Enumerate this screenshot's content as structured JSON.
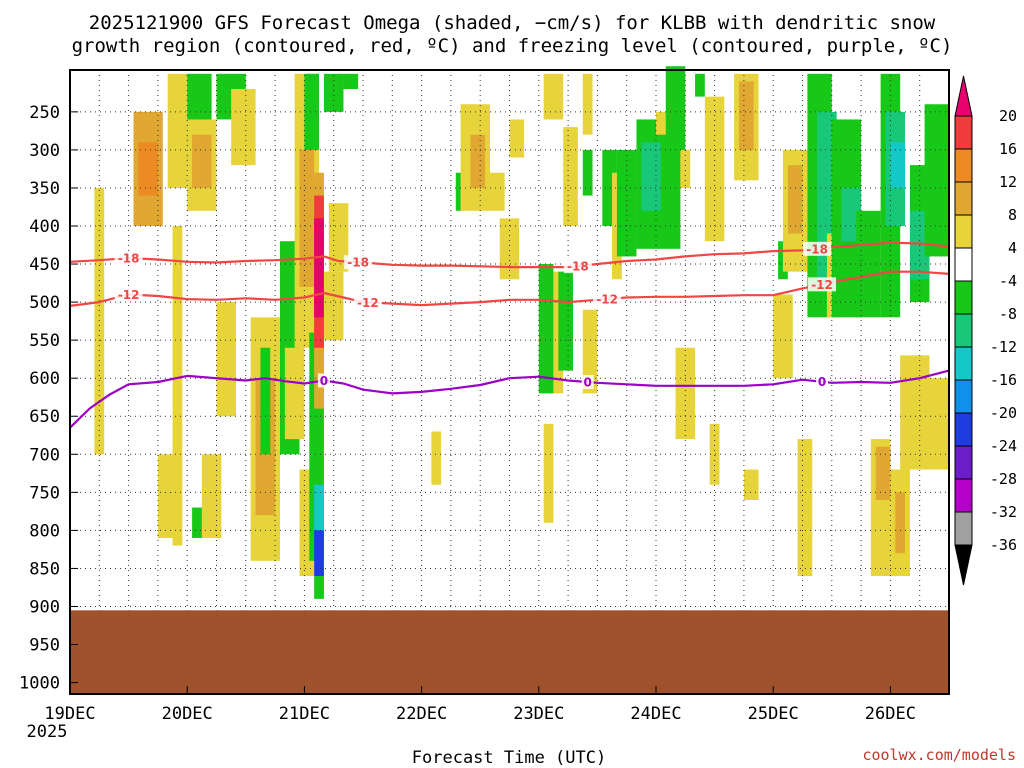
{
  "chart_data": {
    "type": "heatmap",
    "title_lines": [
      "2025121900 GFS Forecast Omega (shaded, −cm/s) for KLBB with dendritic snow",
      "growth region (contoured, red, ºC) and freezing level (contoured, purple, ºC)"
    ],
    "xlabel": "Forecast Time (UTC)",
    "x_ticks": [
      "19DEC",
      "20DEC",
      "21DEC",
      "22DEC",
      "23DEC",
      "24DEC",
      "25DEC",
      "26DEC"
    ],
    "x_sub_label": "2025",
    "x_range_hours": [
      0,
      180
    ],
    "y_ticks": [
      250,
      300,
      350,
      400,
      450,
      500,
      550,
      600,
      650,
      700,
      750,
      800,
      850,
      900,
      950,
      1000
    ],
    "y_range_hpa": [
      195,
      1015
    ],
    "surface_pressure_hpa": 905,
    "colorbar": {
      "labels": [
        20,
        16,
        12,
        8,
        4,
        -4,
        -8,
        -12,
        -16,
        -20,
        -24,
        -28,
        -32,
        -36
      ],
      "colors": [
        "#e8006e",
        "#f03c3c",
        "#ec8a24",
        "#e0a830",
        "#e6d43a",
        "#ffffff",
        "#18c818",
        "#18c878",
        "#14c8c8",
        "#1090e8",
        "#1e3ce0",
        "#6a1ec8",
        "#b400c8",
        "#a0a0a0",
        "#000000"
      ]
    },
    "shading_regions": [
      {
        "t0": 5,
        "t1": 7,
        "p0": 350,
        "p1": 700,
        "value": 4
      },
      {
        "t0": 13,
        "t1": 19,
        "p0": 250,
        "p1": 400,
        "value": 8
      },
      {
        "t0": 14,
        "t1": 18,
        "p0": 290,
        "p1": 360,
        "value": 12
      },
      {
        "t0": 18,
        "t1": 22,
        "p0": 700,
        "p1": 810,
        "value": 4
      },
      {
        "t0": 20,
        "t1": 24,
        "p0": 200,
        "p1": 350,
        "value": 4
      },
      {
        "t0": 21,
        "t1": 23,
        "p0": 400,
        "p1": 820,
        "value": 4
      },
      {
        "t0": 24,
        "t1": 29,
        "p0": 200,
        "p1": 320,
        "value": -8
      },
      {
        "t0": 25,
        "t1": 28,
        "p0": 770,
        "p1": 810,
        "value": -8
      },
      {
        "t0": 24,
        "t1": 30,
        "p0": 260,
        "p1": 380,
        "value": 4
      },
      {
        "t0": 25,
        "t1": 29,
        "p0": 280,
        "p1": 350,
        "value": 8
      },
      {
        "t0": 27,
        "t1": 31,
        "p0": 700,
        "p1": 810,
        "value": 4
      },
      {
        "t0": 30,
        "t1": 34,
        "p0": 500,
        "p1": 650,
        "value": 4
      },
      {
        "t0": 30,
        "t1": 36,
        "p0": 200,
        "p1": 260,
        "value": -8
      },
      {
        "t0": 33,
        "t1": 38,
        "p0": 220,
        "p1": 320,
        "value": 4
      },
      {
        "t0": 37,
        "t1": 43,
        "p0": 520,
        "p1": 840,
        "value": 4
      },
      {
        "t0": 38,
        "t1": 42,
        "p0": 600,
        "p1": 780,
        "value": 8
      },
      {
        "t0": 39,
        "t1": 41,
        "p0": 560,
        "p1": 700,
        "value": -8
      },
      {
        "t0": 43,
        "t1": 47,
        "p0": 420,
        "p1": 700,
        "value": -8
      },
      {
        "t0": 44,
        "t1": 48,
        "p0": 560,
        "p1": 680,
        "value": 4
      },
      {
        "t0": 46,
        "t1": 51,
        "p0": 200,
        "p1": 560,
        "value": 4
      },
      {
        "t0": 47,
        "t1": 50,
        "p0": 300,
        "p1": 480,
        "value": 8
      },
      {
        "t0": 47,
        "t1": 50,
        "p0": 720,
        "p1": 860,
        "value": 4
      },
      {
        "t0": 49,
        "t1": 52,
        "p0": 540,
        "p1": 840,
        "value": -8
      },
      {
        "t0": 50,
        "t1": 52,
        "p0": 860,
        "p1": 890,
        "value": -8
      },
      {
        "t0": 50,
        "t1": 52,
        "p0": 330,
        "p1": 640,
        "value": 8
      },
      {
        "t0": 50,
        "t1": 52,
        "p0": 360,
        "p1": 560,
        "value": 16
      },
      {
        "t0": 50,
        "t1": 52,
        "p0": 390,
        "p1": 520,
        "value": 20
      },
      {
        "t0": 50,
        "t1": 52,
        "p0": 740,
        "p1": 800,
        "value": -16
      },
      {
        "t0": 50,
        "t1": 52,
        "p0": 800,
        "p1": 860,
        "value": -24
      },
      {
        "t0": 48,
        "t1": 51,
        "p0": 200,
        "p1": 300,
        "value": -8
      },
      {
        "t0": 52,
        "t1": 56,
        "p0": 200,
        "p1": 250,
        "value": -8
      },
      {
        "t0": 53,
        "t1": 57,
        "p0": 370,
        "p1": 460,
        "value": 4
      },
      {
        "t0": 52,
        "t1": 56,
        "p0": 460,
        "p1": 550,
        "value": 4
      },
      {
        "t0": 56,
        "t1": 59,
        "p0": 200,
        "p1": 220,
        "value": -8
      },
      {
        "t0": 74,
        "t1": 76,
        "p0": 670,
        "p1": 740,
        "value": 4
      },
      {
        "t0": 80,
        "t1": 86,
        "p0": 240,
        "p1": 380,
        "value": 4
      },
      {
        "t0": 82,
        "t1": 85,
        "p0": 280,
        "p1": 350,
        "value": 8
      },
      {
        "t0": 79,
        "t1": 80,
        "p0": 330,
        "p1": 380,
        "value": -8
      },
      {
        "t0": 86,
        "t1": 89,
        "p0": 330,
        "p1": 380,
        "value": 4
      },
      {
        "t0": 88,
        "t1": 92,
        "p0": 390,
        "p1": 470,
        "value": 4
      },
      {
        "t0": 90,
        "t1": 93,
        "p0": 260,
        "p1": 310,
        "value": 4
      },
      {
        "t0": 96,
        "t1": 99,
        "p0": 450,
        "p1": 620,
        "value": -8
      },
      {
        "t0": 99,
        "t1": 101,
        "p0": 460,
        "p1": 620,
        "value": 4
      },
      {
        "t0": 97,
        "t1": 99,
        "p0": 660,
        "p1": 790,
        "value": 4
      },
      {
        "t0": 100,
        "t1": 103,
        "p0": 460,
        "p1": 590,
        "value": -8
      },
      {
        "t0": 97,
        "t1": 101,
        "p0": 200,
        "p1": 260,
        "value": 4
      },
      {
        "t0": 101,
        "t1": 104,
        "p0": 270,
        "p1": 400,
        "value": 4
      },
      {
        "t0": 105,
        "t1": 107,
        "p0": 200,
        "p1": 280,
        "value": 4
      },
      {
        "t0": 105,
        "t1": 107,
        "p0": 300,
        "p1": 360,
        "value": -8
      },
      {
        "t0": 105,
        "t1": 108,
        "p0": 510,
        "p1": 620,
        "value": 4
      },
      {
        "t0": 109,
        "t1": 112,
        "p0": 300,
        "p1": 400,
        "value": -8
      },
      {
        "t0": 111,
        "t1": 113,
        "p0": 330,
        "p1": 470,
        "value": 4
      },
      {
        "t0": 112,
        "t1": 116,
        "p0": 300,
        "p1": 440,
        "value": -8
      },
      {
        "t0": 116,
        "t1": 125,
        "p0": 260,
        "p1": 430,
        "value": -8
      },
      {
        "t0": 117,
        "t1": 121,
        "p0": 290,
        "p1": 380,
        "value": -12
      },
      {
        "t0": 120,
        "t1": 123,
        "p0": 250,
        "p1": 280,
        "value": 4
      },
      {
        "t0": 122,
        "t1": 126,
        "p0": 190,
        "p1": 310,
        "value": -8
      },
      {
        "t0": 124,
        "t1": 128,
        "p0": 560,
        "p1": 680,
        "value": 4
      },
      {
        "t0": 125,
        "t1": 127,
        "p0": 300,
        "p1": 350,
        "value": 4
      },
      {
        "t0": 128,
        "t1": 130,
        "p0": 200,
        "p1": 230,
        "value": -8
      },
      {
        "t0": 130,
        "t1": 134,
        "p0": 230,
        "p1": 420,
        "value": 4
      },
      {
        "t0": 131,
        "t1": 133,
        "p0": 660,
        "p1": 740,
        "value": 4
      },
      {
        "t0": 136,
        "t1": 141,
        "p0": 200,
        "p1": 340,
        "value": 4
      },
      {
        "t0": 137,
        "t1": 140,
        "p0": 210,
        "p1": 300,
        "value": 8
      },
      {
        "t0": 138,
        "t1": 141,
        "p0": 720,
        "p1": 760,
        "value": 4
      },
      {
        "t0": 144,
        "t1": 148,
        "p0": 490,
        "p1": 600,
        "value": 4
      },
      {
        "t0": 145,
        "t1": 147,
        "p0": 420,
        "p1": 470,
        "value": -8
      },
      {
        "t0": 146,
        "t1": 151,
        "p0": 300,
        "p1": 460,
        "value": 4
      },
      {
        "t0": 147,
        "t1": 150,
        "p0": 320,
        "p1": 410,
        "value": 8
      },
      {
        "t0": 149,
        "t1": 152,
        "p0": 680,
        "p1": 860,
        "value": 4
      },
      {
        "t0": 151,
        "t1": 156,
        "p0": 200,
        "p1": 520,
        "value": -8
      },
      {
        "t0": 153,
        "t1": 157,
        "p0": 250,
        "p1": 480,
        "value": -12
      },
      {
        "t0": 155,
        "t1": 158,
        "p0": 410,
        "p1": 520,
        "value": 4
      },
      {
        "t0": 156,
        "t1": 162,
        "p0": 260,
        "p1": 520,
        "value": -8
      },
      {
        "t0": 158,
        "t1": 162,
        "p0": 350,
        "p1": 420,
        "value": -12
      },
      {
        "t0": 161,
        "t1": 166,
        "p0": 380,
        "p1": 520,
        "value": -8
      },
      {
        "t0": 164,
        "t1": 168,
        "p0": 680,
        "p1": 860,
        "value": 4
      },
      {
        "t0": 165,
        "t1": 168,
        "p0": 690,
        "p1": 760,
        "value": 8
      },
      {
        "t0": 166,
        "t1": 170,
        "p0": 200,
        "p1": 520,
        "value": -8
      },
      {
        "t0": 167,
        "t1": 171,
        "p0": 250,
        "p1": 400,
        "value": -12
      },
      {
        "t0": 168,
        "t1": 171,
        "p0": 290,
        "p1": 350,
        "value": -16
      },
      {
        "t0": 168,
        "t1": 172,
        "p0": 720,
        "p1": 860,
        "value": 4
      },
      {
        "t0": 169,
        "t1": 171,
        "p0": 750,
        "p1": 830,
        "value": 8
      },
      {
        "t0": 170,
        "t1": 176,
        "p0": 570,
        "p1": 720,
        "value": 4
      },
      {
        "t0": 172,
        "t1": 176,
        "p0": 320,
        "p1": 500,
        "value": -8
      },
      {
        "t0": 172,
        "t1": 176,
        "p0": 380,
        "p1": 470,
        "value": -12
      },
      {
        "t0": 175,
        "t1": 180,
        "p0": 240,
        "p1": 440,
        "value": -8
      },
      {
        "t0": 176,
        "t1": 180,
        "p0": 600,
        "p1": 720,
        "value": 4
      }
    ],
    "contours": [
      {
        "name": "dgz-minus-18",
        "value": -18,
        "color": "#f04646",
        "label": "-18",
        "label_at_t": [
          12,
          59,
          104,
          153
        ],
        "points": [
          [
            0,
            447
          ],
          [
            6,
            445
          ],
          [
            12,
            442
          ],
          [
            18,
            444
          ],
          [
            24,
            447
          ],
          [
            30,
            448
          ],
          [
            36,
            446
          ],
          [
            42,
            445
          ],
          [
            48,
            443
          ],
          [
            52,
            440
          ],
          [
            55,
            446
          ],
          [
            60,
            448
          ],
          [
            66,
            451
          ],
          [
            72,
            452
          ],
          [
            78,
            452
          ],
          [
            84,
            453
          ],
          [
            90,
            454
          ],
          [
            96,
            454
          ],
          [
            102,
            454
          ],
          [
            108,
            450
          ],
          [
            114,
            446
          ],
          [
            120,
            444
          ],
          [
            126,
            440
          ],
          [
            132,
            437
          ],
          [
            138,
            436
          ],
          [
            144,
            433
          ],
          [
            150,
            432
          ],
          [
            156,
            428
          ],
          [
            162,
            425
          ],
          [
            168,
            422
          ],
          [
            174,
            423
          ],
          [
            180,
            427
          ]
        ]
      },
      {
        "name": "dgz-minus-12",
        "value": -12,
        "color": "#f04646",
        "label": "-12",
        "label_at_t": [
          12,
          61,
          110,
          154
        ],
        "points": [
          [
            0,
            505
          ],
          [
            6,
            500
          ],
          [
            12,
            490
          ],
          [
            18,
            492
          ],
          [
            24,
            496
          ],
          [
            30,
            497
          ],
          [
            36,
            495
          ],
          [
            42,
            497
          ],
          [
            48,
            494
          ],
          [
            52,
            488
          ],
          [
            56,
            494
          ],
          [
            60,
            500
          ],
          [
            66,
            502
          ],
          [
            72,
            504
          ],
          [
            78,
            502
          ],
          [
            84,
            500
          ],
          [
            90,
            497
          ],
          [
            96,
            497
          ],
          [
            102,
            500
          ],
          [
            108,
            497
          ],
          [
            114,
            494
          ],
          [
            120,
            493
          ],
          [
            126,
            493
          ],
          [
            132,
            492
          ],
          [
            138,
            491
          ],
          [
            144,
            491
          ],
          [
            150,
            482
          ],
          [
            156,
            474
          ],
          [
            162,
            467
          ],
          [
            168,
            460
          ],
          [
            174,
            460
          ],
          [
            180,
            463
          ]
        ]
      },
      {
        "name": "freezing-level",
        "value": 0,
        "color": "#9b00c8",
        "label": "0",
        "label_at_t": [
          52,
          106,
          154
        ],
        "points": [
          [
            0,
            665
          ],
          [
            4,
            640
          ],
          [
            8,
            622
          ],
          [
            12,
            608
          ],
          [
            18,
            605
          ],
          [
            24,
            597
          ],
          [
            30,
            600
          ],
          [
            36,
            603
          ],
          [
            40,
            600
          ],
          [
            44,
            604
          ],
          [
            48,
            607
          ],
          [
            52,
            603
          ],
          [
            56,
            607
          ],
          [
            60,
            615
          ],
          [
            66,
            620
          ],
          [
            72,
            618
          ],
          [
            78,
            614
          ],
          [
            84,
            609
          ],
          [
            90,
            600
          ],
          [
            96,
            598
          ],
          [
            102,
            603
          ],
          [
            108,
            606
          ],
          [
            114,
            608
          ],
          [
            120,
            610
          ],
          [
            126,
            610
          ],
          [
            132,
            610
          ],
          [
            138,
            610
          ],
          [
            144,
            608
          ],
          [
            150,
            602
          ],
          [
            156,
            606
          ],
          [
            162,
            605
          ],
          [
            168,
            606
          ],
          [
            174,
            600
          ],
          [
            180,
            590
          ]
        ]
      }
    ],
    "credit": "coolwx.com/models"
  }
}
